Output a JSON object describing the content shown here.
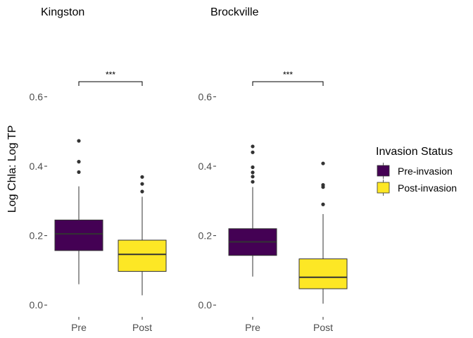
{
  "chart_data": {
    "type": "boxplot",
    "ylabel": "Log Chla: Log TP",
    "ylim": [
      -0.03,
      0.68
    ],
    "yticks": [
      0.0,
      0.2,
      0.4,
      0.6
    ],
    "ytick_labels": [
      "0.0",
      "0.2",
      "0.4",
      "0.6"
    ],
    "categories": [
      "Pre",
      "Post"
    ],
    "legend": {
      "title": "Invasion Status",
      "position": "right",
      "entries": [
        {
          "label": "Pre-invasion",
          "color": "#440154"
        },
        {
          "label": "Post-invasion",
          "color": "#FDE725"
        }
      ]
    },
    "panels": [
      {
        "title": "Kingston",
        "significance": "***",
        "boxes": [
          {
            "category": "Pre",
            "whisker_low": 0.06,
            "q1": 0.157,
            "median": 0.205,
            "q3": 0.245,
            "whisker_high": 0.342,
            "outliers": [
              0.383,
              0.413,
              0.473
            ]
          },
          {
            "category": "Post",
            "whisker_low": 0.028,
            "q1": 0.097,
            "median": 0.146,
            "q3": 0.187,
            "whisker_high": 0.312,
            "outliers": [
              0.327,
              0.349,
              0.369
            ]
          }
        ]
      },
      {
        "title": "Brockville",
        "significance": "***",
        "boxes": [
          {
            "category": "Pre",
            "whisker_low": 0.082,
            "q1": 0.143,
            "median": 0.182,
            "q3": 0.22,
            "whisker_high": 0.34,
            "outliers": [
              0.355,
              0.37,
              0.382,
              0.397,
              0.44,
              0.457
            ]
          },
          {
            "category": "Post",
            "whisker_low": 0.004,
            "q1": 0.047,
            "median": 0.08,
            "q3": 0.133,
            "whisker_high": 0.262,
            "outliers": [
              0.29,
              0.34,
              0.346,
              0.408
            ]
          }
        ]
      }
    ]
  }
}
